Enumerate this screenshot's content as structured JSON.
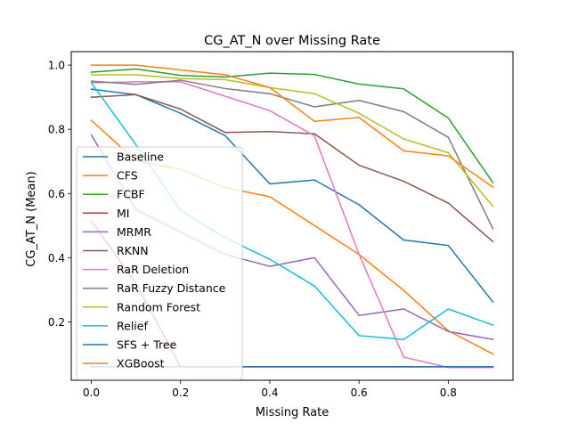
{
  "chart_data": {
    "type": "line",
    "title": "CG_AT_N over Missing Rate",
    "xlabel": "Missing Rate",
    "ylabel": "CG_AT_N (Mean)",
    "xlim": [
      -0.045,
      0.945
    ],
    "ylim": [
      0.018,
      1.042
    ],
    "xticks": [
      0.0,
      0.2,
      0.4,
      0.6,
      0.8
    ],
    "xtick_labels": [
      "0.0",
      "0.2",
      "0.4",
      "0.6",
      "0.8"
    ],
    "yticks": [
      0.2,
      0.4,
      0.6,
      0.8,
      1.0
    ],
    "ytick_labels": [
      "0.2",
      "0.4",
      "0.6",
      "0.8",
      "1.0"
    ],
    "grid": false,
    "legend_position": "lower-left",
    "x": [
      0.0,
      0.1,
      0.2,
      0.3,
      0.4,
      0.5,
      0.6,
      0.7,
      0.8,
      0.9
    ],
    "series": [
      {
        "name": "Baseline",
        "color": "#1f77b4",
        "values": [
          0.925,
          0.908,
          0.85,
          0.78,
          0.63,
          0.642,
          0.565,
          0.455,
          0.438,
          0.262
        ]
      },
      {
        "name": "CFS",
        "color": "#ff7f0e",
        "values": [
          0.828,
          0.702,
          0.675,
          0.618,
          0.59,
          0.5,
          0.41,
          0.298,
          0.172,
          0.1
        ]
      },
      {
        "name": "FCBF",
        "color": "#2ca02c",
        "values": [
          0.978,
          0.988,
          0.968,
          0.963,
          0.975,
          0.971,
          0.941,
          0.926,
          0.835,
          0.634
        ]
      },
      {
        "name": "MI",
        "color": "#d62728",
        "values": [
          0.515,
          0.32,
          0.06,
          0.06,
          0.06,
          0.06,
          0.06,
          0.06,
          0.06,
          0.06
        ]
      },
      {
        "name": "MRMR",
        "color": "#9467bd",
        "values": [
          0.782,
          0.55,
          0.48,
          0.41,
          0.373,
          0.4,
          0.22,
          0.24,
          0.17,
          0.145
        ]
      },
      {
        "name": "RKNN",
        "color": "#8c564b",
        "values": [
          0.9,
          0.908,
          0.863,
          0.79,
          0.793,
          0.786,
          0.688,
          0.638,
          0.57,
          0.45
        ]
      },
      {
        "name": "RaR Deletion",
        "color": "#e377c2",
        "values": [
          0.945,
          0.948,
          0.948,
          0.903,
          0.858,
          0.78,
          0.41,
          0.09,
          0.058,
          0.058
        ]
      },
      {
        "name": "RaR Fuzzy Distance",
        "color": "#7f7f7f",
        "values": [
          0.95,
          0.94,
          0.953,
          0.927,
          0.911,
          0.87,
          0.89,
          0.855,
          0.775,
          0.49
        ]
      },
      {
        "name": "Random Forest",
        "color": "#bcbd22",
        "values": [
          0.97,
          0.97,
          0.958,
          0.955,
          0.93,
          0.911,
          0.85,
          0.77,
          0.727,
          0.56
        ]
      },
      {
        "name": "Relief",
        "color": "#17becf",
        "values": [
          0.945,
          0.752,
          0.546,
          0.462,
          0.395,
          0.312,
          0.157,
          0.145,
          0.24,
          0.19
        ]
      },
      {
        "name": "SFS + Tree",
        "color": "#1f77b4",
        "values": [
          0.06,
          0.06,
          0.06,
          0.06,
          0.06,
          0.06,
          0.06,
          0.06,
          0.06,
          0.06
        ]
      },
      {
        "name": "XGBoost",
        "color": "#ff7f0e",
        "values": [
          1.0,
          1.0,
          0.985,
          0.97,
          0.93,
          0.825,
          0.837,
          0.733,
          0.717,
          0.62
        ]
      }
    ]
  }
}
